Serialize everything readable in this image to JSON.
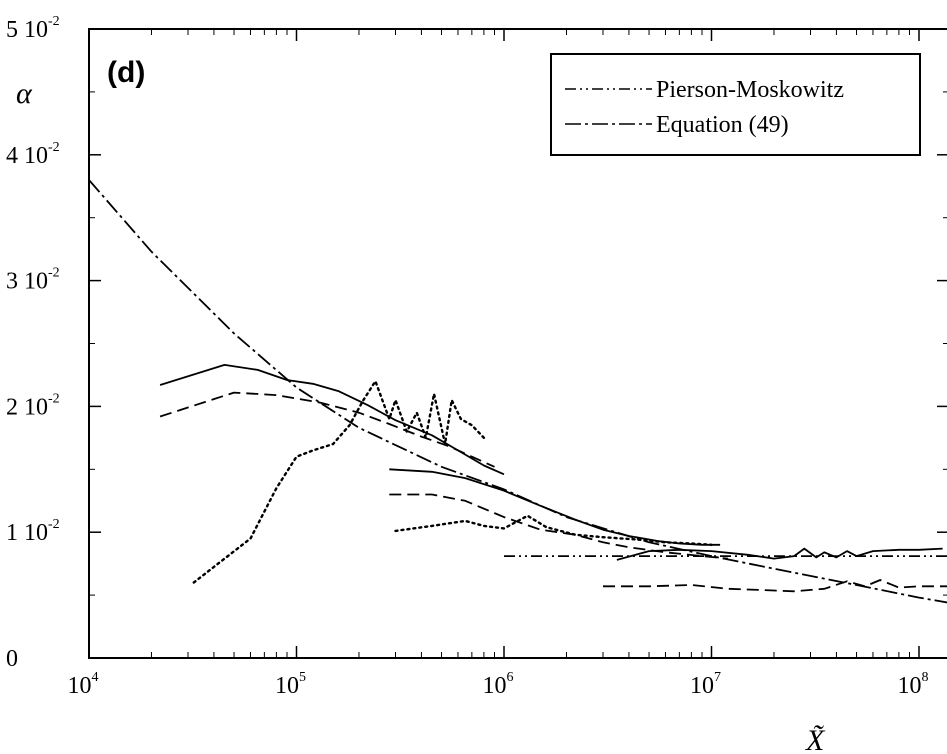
{
  "chart_data": {
    "type": "line",
    "x_scale": "log",
    "xlim": [
      10000,
      150000000
    ],
    "ylim": [
      0,
      0.05
    ],
    "grid": false,
    "panel_label": "(d)",
    "ylabel": "α",
    "xlabel": "X̃",
    "y_ticks": [
      {
        "value": 0,
        "mant": "0",
        "exp": ""
      },
      {
        "value": 0.01,
        "mant": "1 10",
        "exp": "-2"
      },
      {
        "value": 0.02,
        "mant": "2 10",
        "exp": "-2"
      },
      {
        "value": 0.03,
        "mant": "3 10",
        "exp": "-2"
      },
      {
        "value": 0.04,
        "mant": "4 10",
        "exp": "-2"
      },
      {
        "value": 0.05,
        "mant": "5 10",
        "exp": "-2"
      }
    ],
    "x_ticks": [
      {
        "value": 10000,
        "mant": "10",
        "exp": "4"
      },
      {
        "value": 100000,
        "mant": "10",
        "exp": "5"
      },
      {
        "value": 1000000,
        "mant": "10",
        "exp": "6"
      },
      {
        "value": 10000000,
        "mant": "10",
        "exp": "7"
      },
      {
        "value": 100000000,
        "mant": "10",
        "exp": "8"
      }
    ],
    "legend": {
      "position": "top-right",
      "entries": [
        {
          "label": "Pierson-Moskowitz",
          "style": "dash-dot-dot"
        },
        {
          "label": "Equation (49)",
          "style": "dash-dot"
        }
      ]
    },
    "series": [
      {
        "name": "Pierson-Moskowitz",
        "style": "dash-dot-dot",
        "x": [
          1000000,
          150000000
        ],
        "y": [
          0.0081,
          0.0081
        ]
      },
      {
        "name": "Equation (49)",
        "style": "dash-dot",
        "x": [
          10000,
          20000,
          50000,
          100000,
          200000,
          500000,
          1000000,
          2000000,
          5000000,
          10000000,
          20000000,
          50000000,
          100000000,
          150000000
        ],
        "y": [
          0.038,
          0.0323,
          0.0258,
          0.0215,
          0.0183,
          0.0152,
          0.0134,
          0.0112,
          0.0092,
          0.0081,
          0.0071,
          0.0058,
          0.0048,
          0.0043
        ]
      },
      {
        "style": "solid",
        "x": [
          22000,
          45000,
          65000,
          90000,
          120000,
          160000,
          220000,
          300000,
          450000,
          600000,
          800000,
          1000000
        ],
        "y": [
          0.0217,
          0.0233,
          0.0229,
          0.0221,
          0.0218,
          0.0212,
          0.0201,
          0.0189,
          0.0177,
          0.0165,
          0.0153,
          0.0146
        ]
      },
      {
        "style": "dashed",
        "x": [
          22000,
          50000,
          80000,
          130000,
          200000,
          280000,
          400000,
          550000,
          700000,
          900000
        ],
        "y": [
          0.0192,
          0.0211,
          0.0209,
          0.0203,
          0.0195,
          0.0186,
          0.0176,
          0.0168,
          0.016,
          0.0152
        ]
      },
      {
        "style": "dotted",
        "x": [
          32000,
          60000,
          80000,
          100000,
          120000,
          150000,
          180000,
          210000,
          240000,
          280000,
          300000,
          340000,
          380000,
          420000,
          460000,
          520000,
          560000,
          620000,
          700000,
          800000
        ],
        "y": [
          0.006,
          0.0095,
          0.0135,
          0.016,
          0.0165,
          0.017,
          0.0185,
          0.0205,
          0.022,
          0.019,
          0.0205,
          0.018,
          0.0195,
          0.0175,
          0.021,
          0.017,
          0.0205,
          0.019,
          0.0185,
          0.0175
        ]
      },
      {
        "style": "solid",
        "x": [
          280000,
          450000,
          650000,
          1000000,
          1500000,
          2200000,
          3000000,
          4000000,
          5500000,
          7000000,
          9000000,
          11000000
        ],
        "y": [
          0.015,
          0.0148,
          0.0143,
          0.0133,
          0.0121,
          0.011,
          0.0102,
          0.0097,
          0.0093,
          0.0091,
          0.009,
          0.009
        ]
      },
      {
        "style": "dashed",
        "x": [
          280000,
          450000,
          650000,
          1000000,
          1500000,
          2200000,
          3000000,
          4000000,
          6000000,
          9000000,
          12000000
        ],
        "y": [
          0.013,
          0.013,
          0.0125,
          0.0112,
          0.0102,
          0.0098,
          0.0092,
          0.0088,
          0.0084,
          0.0081,
          0.0079
        ]
      },
      {
        "style": "dotted",
        "x": [
          300000,
          450000,
          650000,
          800000,
          1000000,
          1300000,
          1600000,
          2200000,
          3000000,
          4500000,
          6000000,
          8000000,
          10000000
        ],
        "y": [
          0.0101,
          0.0105,
          0.0109,
          0.0105,
          0.0103,
          0.0113,
          0.0104,
          0.0098,
          0.0096,
          0.0094,
          0.0092,
          0.0091,
          0.009
        ]
      },
      {
        "style": "solid",
        "x": [
          3500000,
          5000000,
          7000000,
          10000000,
          15000000,
          20000000,
          25000000,
          28000000,
          32000000,
          35000000,
          40000000,
          45000000,
          50000000,
          60000000,
          80000000,
          100000000,
          130000000
        ],
        "y": [
          0.0078,
          0.0085,
          0.0086,
          0.0085,
          0.0082,
          0.0079,
          0.0081,
          0.0087,
          0.008,
          0.0084,
          0.008,
          0.0085,
          0.0081,
          0.0085,
          0.0086,
          0.0086,
          0.0087
        ]
      },
      {
        "style": "dashed",
        "x": [
          3000000,
          5000000,
          8000000,
          12000000,
          18000000,
          25000000,
          35000000,
          45000000,
          55000000,
          65000000,
          80000000,
          100000000,
          140000000
        ],
        "y": [
          0.0057,
          0.0057,
          0.0058,
          0.0055,
          0.0054,
          0.0053,
          0.0055,
          0.0061,
          0.0057,
          0.0062,
          0.0056,
          0.0057,
          0.0057
        ]
      }
    ]
  }
}
